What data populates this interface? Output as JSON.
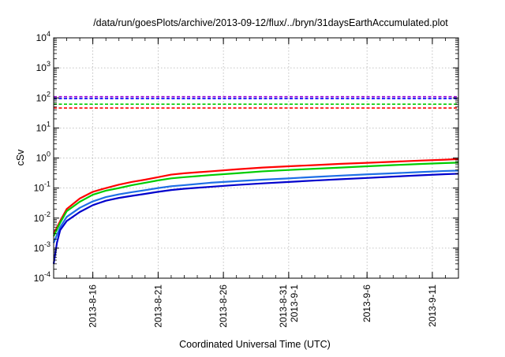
{
  "chart_data": {
    "type": "line",
    "title": "/data/run/goesPlots/archive/2013-09-12/flux/../bryn/31daysEarthAccumulated.plot",
    "xlabel": "Coordinated Universal Time (UTC)",
    "ylabel": "cSv",
    "yscale": "log",
    "ylim": [
      0.0001,
      10000
    ],
    "xlim": [
      "2013-08-13",
      "2013-09-13"
    ],
    "grid": true,
    "x_ticks": [
      {
        "date": "2013-08-16",
        "label": [
          "2013-8-16"
        ]
      },
      {
        "date": "2013-08-21",
        "label": [
          "2013-8-21"
        ]
      },
      {
        "date": "2013-08-26",
        "label": [
          "2013-8-26"
        ]
      },
      {
        "date": "2013-08-31",
        "label": [
          "2013-8-31",
          "2013-9-1"
        ]
      },
      {
        "date": "2013-09-06",
        "label": [
          "2013-9-6"
        ]
      },
      {
        "date": "2013-09-11",
        "label": [
          "2013-9-11"
        ]
      }
    ],
    "y_ticks": [
      {
        "value": 0.0001,
        "base": "10",
        "exp": "-4"
      },
      {
        "value": 0.001,
        "base": "10",
        "exp": "-3"
      },
      {
        "value": 0.01,
        "base": "10",
        "exp": "-2"
      },
      {
        "value": 0.1,
        "base": "10",
        "exp": "-1"
      },
      {
        "value": 1,
        "base": "10",
        "exp": "0"
      },
      {
        "value": 10,
        "base": "10",
        "exp": "1"
      },
      {
        "value": 100,
        "base": "10",
        "exp": "2"
      },
      {
        "value": 1000,
        "base": "10",
        "exp": "3"
      },
      {
        "value": 10000,
        "base": "10",
        "exp": "4"
      }
    ],
    "thresholds": [
      {
        "value": 110,
        "color": "#9400d3"
      },
      {
        "value": 95,
        "color": "#0000ff"
      },
      {
        "value": 62,
        "color": "#00cc00"
      },
      {
        "value": 46,
        "color": "#ff0000"
      }
    ],
    "series": [
      {
        "color": "#ff0000",
        "points": [
          [
            "2013-08-13T00:00",
            0.003
          ],
          [
            "2013-08-13T12:00",
            0.008
          ],
          [
            "2013-08-14T00:00",
            0.02
          ],
          [
            "2013-08-15T00:00",
            0.045
          ],
          [
            "2013-08-16T00:00",
            0.075
          ],
          [
            "2013-08-17T00:00",
            0.1
          ],
          [
            "2013-08-18T00:00",
            0.13
          ],
          [
            "2013-08-19T00:00",
            0.16
          ],
          [
            "2013-08-20T00:00",
            0.19
          ],
          [
            "2013-08-21T00:00",
            0.23
          ],
          [
            "2013-08-22T00:00",
            0.28
          ],
          [
            "2013-08-23T00:00",
            0.31
          ],
          [
            "2013-08-25T00:00",
            0.36
          ],
          [
            "2013-08-27T00:00",
            0.42
          ],
          [
            "2013-08-29T00:00",
            0.48
          ],
          [
            "2013-08-31T00:00",
            0.53
          ],
          [
            "2013-09-02T00:00",
            0.58
          ],
          [
            "2013-09-04T00:00",
            0.64
          ],
          [
            "2013-09-06T00:00",
            0.69
          ],
          [
            "2013-09-08T00:00",
            0.75
          ],
          [
            "2013-09-10T00:00",
            0.82
          ],
          [
            "2013-09-12T00:00",
            0.88
          ],
          [
            "2013-09-13T00:00",
            0.92
          ]
        ]
      },
      {
        "color": "#00cc00",
        "points": [
          [
            "2013-08-13T00:00",
            0.0025
          ],
          [
            "2013-08-13T12:00",
            0.007
          ],
          [
            "2013-08-14T00:00",
            0.017
          ],
          [
            "2013-08-15T00:00",
            0.035
          ],
          [
            "2013-08-16T00:00",
            0.06
          ],
          [
            "2013-08-17T00:00",
            0.082
          ],
          [
            "2013-08-18T00:00",
            0.1
          ],
          [
            "2013-08-19T00:00",
            0.125
          ],
          [
            "2013-08-20T00:00",
            0.15
          ],
          [
            "2013-08-21T00:00",
            0.18
          ],
          [
            "2013-08-22T00:00",
            0.21
          ],
          [
            "2013-08-23T00:00",
            0.23
          ],
          [
            "2013-08-25T00:00",
            0.27
          ],
          [
            "2013-08-27T00:00",
            0.31
          ],
          [
            "2013-08-29T00:00",
            0.36
          ],
          [
            "2013-08-31T00:00",
            0.4
          ],
          [
            "2013-09-02T00:00",
            0.44
          ],
          [
            "2013-09-04T00:00",
            0.48
          ],
          [
            "2013-09-06T00:00",
            0.53
          ],
          [
            "2013-09-08T00:00",
            0.58
          ],
          [
            "2013-09-10T00:00",
            0.63
          ],
          [
            "2013-09-12T00:00",
            0.68
          ],
          [
            "2013-09-13T00:00",
            0.7
          ]
        ]
      },
      {
        "color": "#1e6fe6",
        "points": [
          [
            "2013-08-13T00:00",
            0.0015
          ],
          [
            "2013-08-13T12:00",
            0.005
          ],
          [
            "2013-08-14T00:00",
            0.011
          ],
          [
            "2013-08-15T00:00",
            0.022
          ],
          [
            "2013-08-16T00:00",
            0.036
          ],
          [
            "2013-08-17T00:00",
            0.05
          ],
          [
            "2013-08-18T00:00",
            0.062
          ],
          [
            "2013-08-19T00:00",
            0.073
          ],
          [
            "2013-08-20T00:00",
            0.085
          ],
          [
            "2013-08-21T00:00",
            0.1
          ],
          [
            "2013-08-22T00:00",
            0.115
          ],
          [
            "2013-08-23T00:00",
            0.125
          ],
          [
            "2013-08-25T00:00",
            0.15
          ],
          [
            "2013-08-27T00:00",
            0.17
          ],
          [
            "2013-08-29T00:00",
            0.19
          ],
          [
            "2013-08-31T00:00",
            0.21
          ],
          [
            "2013-09-02T00:00",
            0.235
          ],
          [
            "2013-09-04T00:00",
            0.26
          ],
          [
            "2013-09-06T00:00",
            0.285
          ],
          [
            "2013-09-08T00:00",
            0.31
          ],
          [
            "2013-09-10T00:00",
            0.34
          ],
          [
            "2013-09-12T00:00",
            0.37
          ],
          [
            "2013-09-13T00:00",
            0.38
          ]
        ]
      },
      {
        "color": "#0000cc",
        "points": [
          [
            "2013-08-13T00:00",
            0.0003
          ],
          [
            "2013-08-13T06:00",
            0.0015
          ],
          [
            "2013-08-13T12:00",
            0.004
          ],
          [
            "2013-08-14T00:00",
            0.008
          ],
          [
            "2013-08-15T00:00",
            0.016
          ],
          [
            "2013-08-16T00:00",
            0.027
          ],
          [
            "2013-08-17T00:00",
            0.038
          ],
          [
            "2013-08-18T00:00",
            0.047
          ],
          [
            "2013-08-19T00:00",
            0.055
          ],
          [
            "2013-08-20T00:00",
            0.064
          ],
          [
            "2013-08-21T00:00",
            0.075
          ],
          [
            "2013-08-22T00:00",
            0.086
          ],
          [
            "2013-08-23T00:00",
            0.095
          ],
          [
            "2013-08-25T00:00",
            0.11
          ],
          [
            "2013-08-27T00:00",
            0.127
          ],
          [
            "2013-08-29T00:00",
            0.143
          ],
          [
            "2013-08-31T00:00",
            0.16
          ],
          [
            "2013-09-02T00:00",
            0.178
          ],
          [
            "2013-09-04T00:00",
            0.197
          ],
          [
            "2013-09-06T00:00",
            0.217
          ],
          [
            "2013-09-08T00:00",
            0.24
          ],
          [
            "2013-09-10T00:00",
            0.265
          ],
          [
            "2013-09-12T00:00",
            0.29
          ],
          [
            "2013-09-13T00:00",
            0.3
          ]
        ]
      }
    ]
  }
}
